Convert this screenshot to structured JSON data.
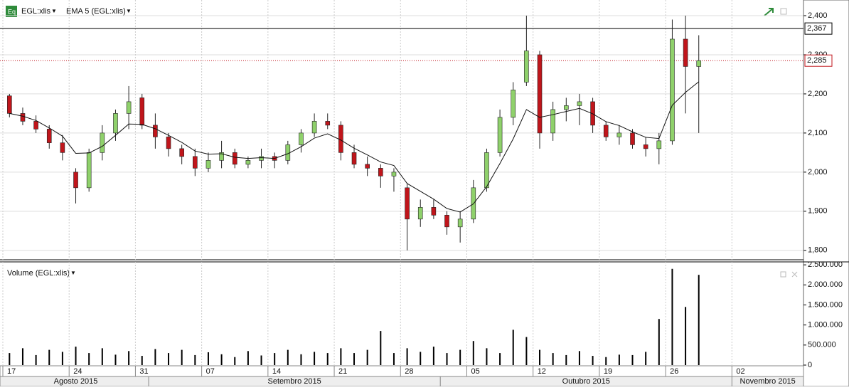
{
  "chart_data": [
    {
      "type": "candlestick",
      "series": [
        {
          "name": "EGL:xlis",
          "type": "candlestick",
          "up_color": "#8fd16b",
          "down_color": "#c0151b",
          "ohlc": [
            [
              2195,
              2200,
              2140,
              2150
            ],
            [
              2150,
              2165,
              2120,
              2130
            ],
            [
              2130,
              2145,
              2100,
              2110
            ],
            [
              2110,
              2120,
              2060,
              2075
            ],
            [
              2075,
              2095,
              2030,
              2050
            ],
            [
              2000,
              2010,
              1920,
              1960
            ],
            [
              1960,
              2060,
              1950,
              2050
            ],
            [
              2050,
              2120,
              2030,
              2100
            ],
            [
              2100,
              2160,
              2080,
              2150
            ],
            [
              2150,
              2220,
              2110,
              2180
            ],
            [
              2190,
              2200,
              2110,
              2120
            ],
            [
              2120,
              2150,
              2060,
              2090
            ],
            [
              2090,
              2100,
              2040,
              2060
            ],
            [
              2060,
              2070,
              2020,
              2040
            ],
            [
              2040,
              2060,
              1990,
              2010
            ],
            [
              2010,
              2050,
              2000,
              2030
            ],
            [
              2030,
              2080,
              2010,
              2050
            ],
            [
              2050,
              2060,
              2010,
              2020
            ],
            [
              2020,
              2040,
              2010,
              2030
            ],
            [
              2030,
              2060,
              2010,
              2040
            ],
            [
              2040,
              2050,
              2010,
              2030
            ],
            [
              2030,
              2080,
              2020,
              2070
            ],
            [
              2070,
              2110,
              2050,
              2100
            ],
            [
              2100,
              2150,
              2090,
              2130
            ],
            [
              2130,
              2150,
              2110,
              2120
            ],
            [
              2120,
              2130,
              2030,
              2050
            ],
            [
              2050,
              2070,
              2010,
              2020
            ],
            [
              2020,
              2040,
              1990,
              2010
            ],
            [
              2010,
              2020,
              1960,
              1990
            ],
            [
              1990,
              2010,
              1950,
              2000
            ],
            [
              1960,
              1970,
              1800,
              1880
            ],
            [
              1880,
              1930,
              1860,
              1910
            ],
            [
              1910,
              1930,
              1880,
              1890
            ],
            [
              1890,
              1900,
              1840,
              1860
            ],
            [
              1860,
              1900,
              1820,
              1880
            ],
            [
              1880,
              1980,
              1870,
              1960
            ],
            [
              1960,
              2060,
              1950,
              2050
            ],
            [
              2050,
              2160,
              2040,
              2140
            ],
            [
              2140,
              2230,
              2120,
              2210
            ],
            [
              2230,
              2400,
              2220,
              2310
            ],
            [
              2300,
              2310,
              2060,
              2100
            ],
            [
              2100,
              2180,
              2080,
              2160
            ],
            [
              2160,
              2190,
              2130,
              2170
            ],
            [
              2170,
              2200,
              2120,
              2180
            ],
            [
              2180,
              2190,
              2100,
              2120
            ],
            [
              2120,
              2130,
              2080,
              2090
            ],
            [
              2090,
              2120,
              2070,
              2100
            ],
            [
              2100,
              2110,
              2060,
              2070
            ],
            [
              2070,
              2090,
              2040,
              2060
            ],
            [
              2060,
              2100,
              2020,
              2080
            ],
            [
              2080,
              2390,
              2070,
              2340
            ],
            [
              2340,
              2400,
              2150,
              2270
            ],
            [
              2270,
              2350,
              2100,
              2285
            ]
          ]
        },
        {
          "name": "EMA 5 (EGL:xlis)",
          "type": "line",
          "color": "#111111",
          "values": [
            2150,
            2143,
            2132,
            2113,
            2092,
            2048,
            2049,
            2066,
            2094,
            2123,
            2122,
            2111,
            2094,
            2076,
            2054,
            2046,
            2047,
            2038,
            2035,
            2037,
            2035,
            2047,
            2065,
            2087,
            2098,
            2082,
            2061,
            2044,
            2026,
            2017,
            1971,
            1951,
            1931,
            1907,
            1898,
            1919,
            1963,
            2022,
            2085,
            2160,
            2140,
            2147,
            2155,
            2163,
            2149,
            2129,
            2119,
            2103,
            2089,
            2086,
            2171,
            2204,
            2231
          ]
        }
      ],
      "ylim": [
        1776,
        2440
      ],
      "yticks": [
        {
          "value": 1800,
          "label": "1,800"
        },
        {
          "value": 1900,
          "label": "1,900"
        },
        {
          "value": 2000,
          "label": "2,000"
        },
        {
          "value": 2100,
          "label": "2,100"
        },
        {
          "value": 2200,
          "label": "2,200"
        },
        {
          "value": 2300,
          "label": "2,300"
        },
        {
          "value": 2400,
          "label": "2,400"
        }
      ],
      "reference_line": {
        "value": 2367,
        "label": "2,367"
      },
      "last_price": {
        "value": 2285,
        "label": "2,285"
      },
      "grid": true
    },
    {
      "type": "volume",
      "title": "Volume (EGL:xlis)",
      "color": "#000000",
      "values": [
        300000,
        420000,
        250000,
        380000,
        330000,
        460000,
        300000,
        420000,
        260000,
        350000,
        230000,
        400000,
        300000,
        380000,
        250000,
        320000,
        270000,
        200000,
        350000,
        240000,
        300000,
        380000,
        270000,
        330000,
        300000,
        420000,
        300000,
        380000,
        850000,
        300000,
        420000,
        330000,
        460000,
        300000,
        380000,
        600000,
        420000,
        300000,
        880000,
        700000,
        380000,
        300000,
        250000,
        350000,
        230000,
        200000,
        260000,
        250000,
        330000,
        1150000,
        2400000,
        1450000,
        2250000
      ],
      "ylim": [
        0,
        2520000
      ],
      "yticks": [
        0,
        {
          "value": 500000,
          "label": "500.000"
        },
        {
          "value": 1000000,
          "label": "1.000.000"
        },
        {
          "value": 1500000,
          "label": "1.500.000"
        },
        {
          "value": 2000000,
          "label": "2.000.000"
        },
        {
          "value": 2500000,
          "label": "2.500.000"
        }
      ],
      "xlim": [
        0,
        60.4
      ],
      "xticks": [
        {
          "value": 0,
          "label": "17"
        },
        {
          "value": 5,
          "label": "24"
        },
        {
          "value": 10,
          "label": "31"
        },
        {
          "value": 15,
          "label": "07"
        },
        {
          "value": 20,
          "label": "14"
        },
        {
          "value": 25,
          "label": "21"
        },
        {
          "value": 30,
          "label": "28"
        },
        {
          "value": 35,
          "label": "05"
        },
        {
          "value": 40,
          "label": "12"
        },
        {
          "value": 45,
          "label": "19"
        },
        {
          "value": 50,
          "label": "26"
        },
        {
          "value": 55,
          "label": "02"
        }
      ],
      "month_starts": [
        11,
        33,
        55
      ],
      "months": [
        "Agosto 2015",
        "Setembro 2015",
        "Outubro 2015",
        "Novembro 2015"
      ]
    }
  ]
}
